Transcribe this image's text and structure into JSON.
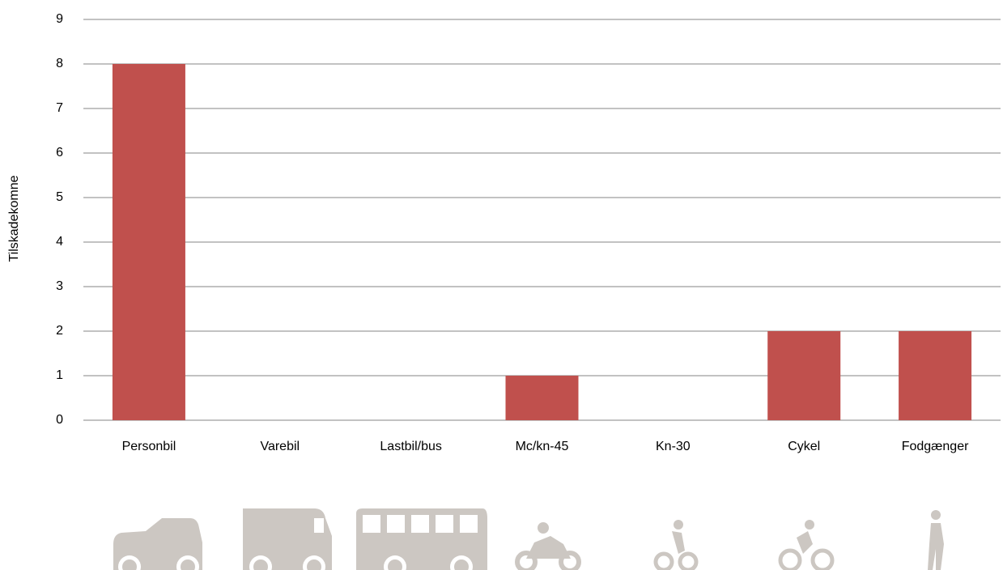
{
  "chart_data": {
    "type": "bar",
    "y_label": "Tilskadekomne",
    "categories": [
      "Personbil",
      "Varebil",
      "Lastbil/bus",
      "Mc/kn-45",
      "Kn-30",
      "Cykel",
      "Fodgænger"
    ],
    "values": [
      8,
      0,
      0,
      1,
      0,
      2,
      2
    ],
    "color": "#c0504d",
    "ylim": [
      0,
      9
    ],
    "yticks": [
      0,
      1,
      2,
      3,
      4,
      5,
      6,
      7,
      8,
      9
    ],
    "grid": true
  }
}
